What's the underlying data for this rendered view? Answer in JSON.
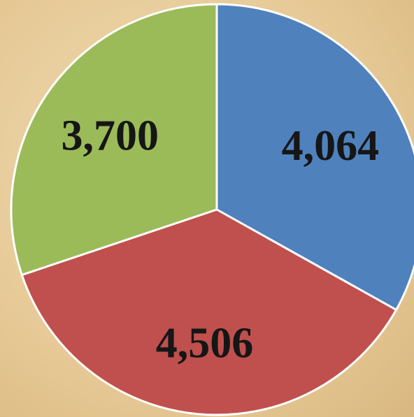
{
  "chart_data": {
    "type": "pie",
    "categories": [
      null,
      null,
      null
    ],
    "series": [
      {
        "name": null,
        "colors": [
          "#4f81bd",
          "#c0504d",
          "#9bbb59"
        ],
        "values": [
          4064,
          4506,
          3700
        ],
        "value_labels": [
          "4,064",
          "4,506",
          "3,700"
        ]
      }
    ]
  }
}
